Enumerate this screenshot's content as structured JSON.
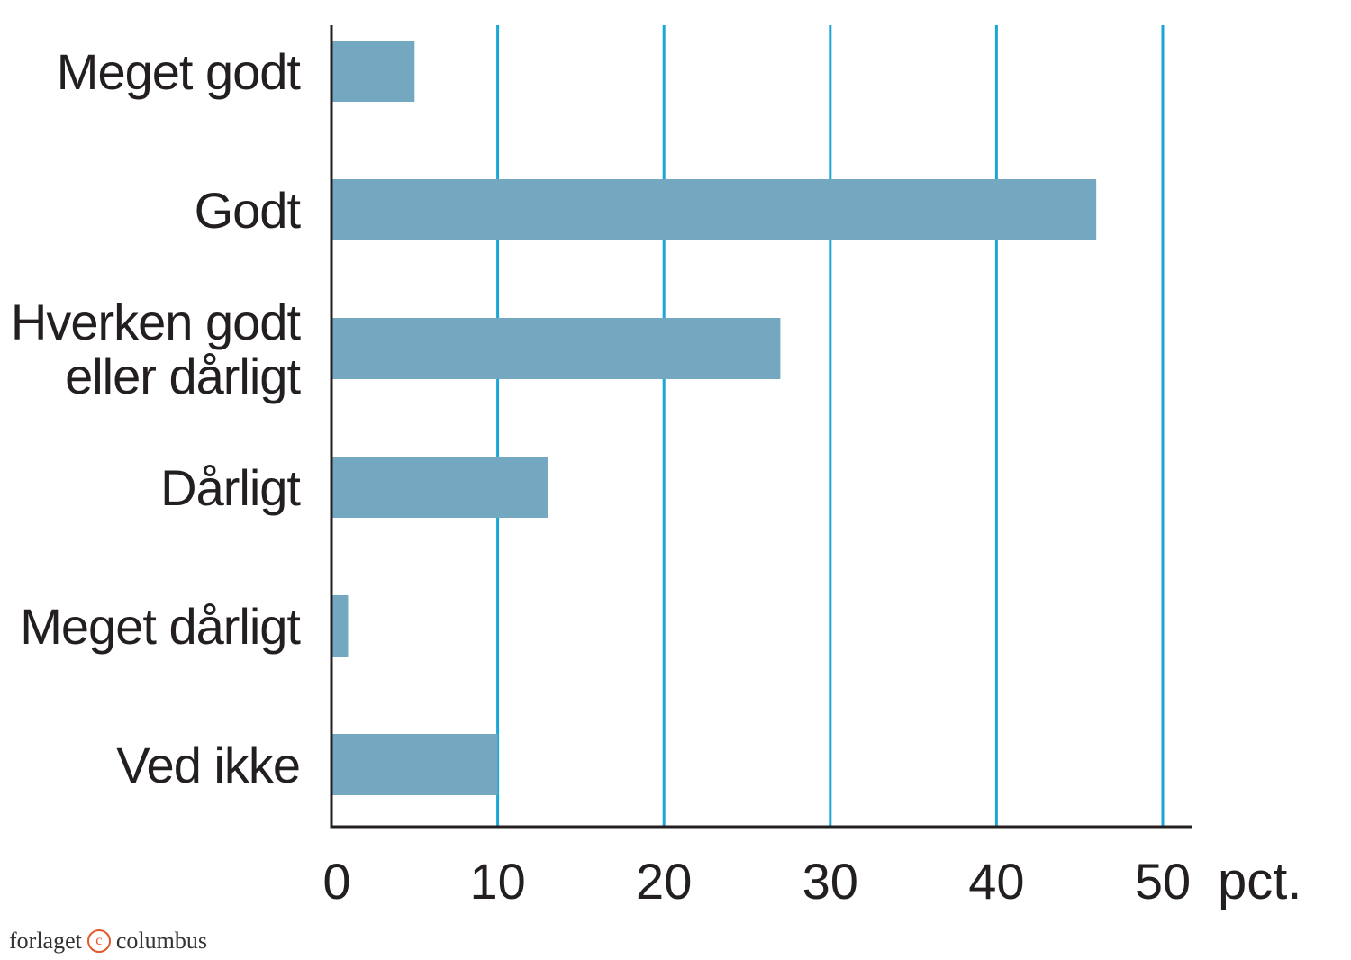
{
  "chart_data": {
    "type": "bar",
    "orientation": "horizontal",
    "categories": [
      [
        "Meget godt"
      ],
      [
        "Godt"
      ],
      [
        "Hverken godt",
        "eller dårligt"
      ],
      [
        "Dårligt"
      ],
      [
        "Meget dårligt"
      ],
      [
        "Ved ikke"
      ]
    ],
    "values": [
      5,
      46,
      27,
      13,
      1,
      10
    ],
    "xlim": [
      0,
      52
    ],
    "xticks": [
      0,
      10,
      20,
      30,
      40,
      50
    ],
    "xlabel": "pct.",
    "title": "",
    "grid": "vertical",
    "colors": {
      "bar": "#74a8c1",
      "grid": "#1ba6d6",
      "axis": "#231f20"
    }
  },
  "footer": {
    "brand_left": "forlaget",
    "brand_mark": "c",
    "brand_right": "columbus"
  }
}
